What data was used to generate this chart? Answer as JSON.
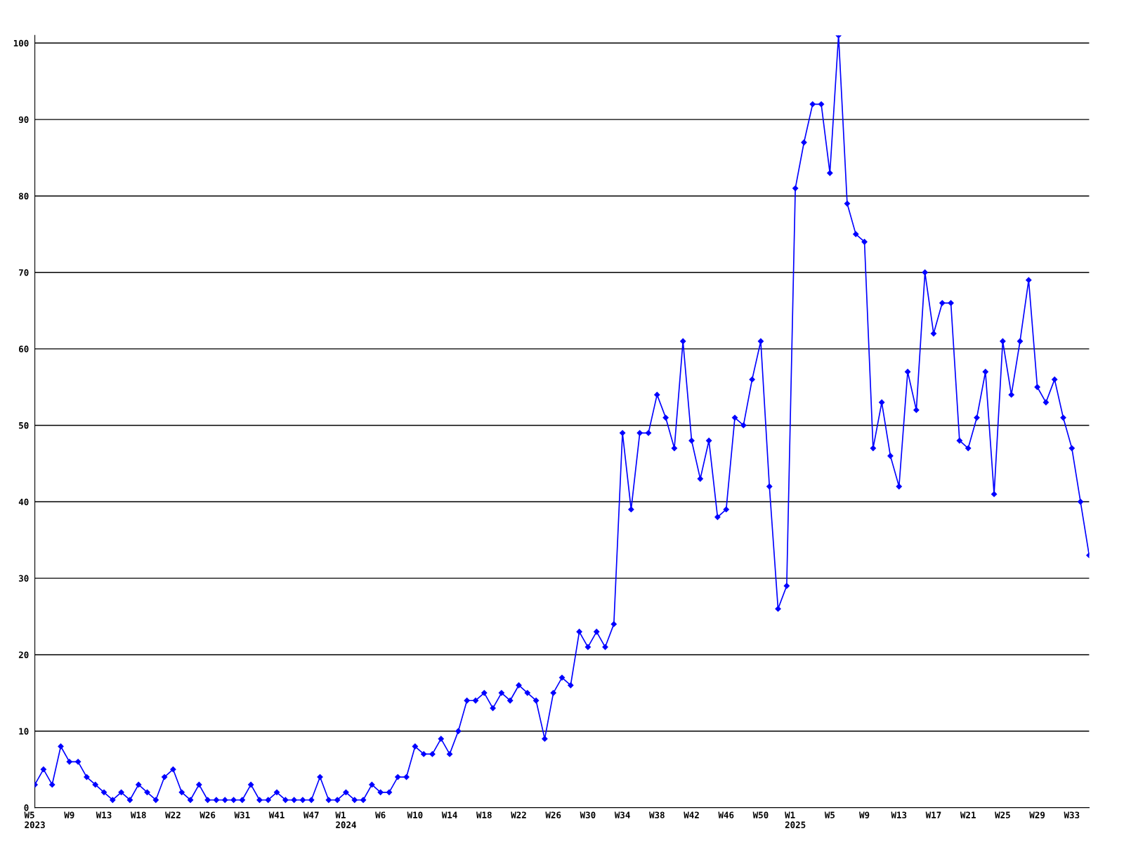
{
  "chart_data": {
    "type": "line",
    "categories": [
      "W5\n2023",
      null,
      null,
      null,
      "W9",
      null,
      null,
      null,
      "W13",
      null,
      null,
      null,
      "W18",
      null,
      null,
      null,
      "W22",
      null,
      null,
      null,
      "W26",
      null,
      null,
      null,
      "W31",
      null,
      null,
      null,
      "W41",
      null,
      null,
      null,
      "W47",
      null,
      null,
      null,
      "W1\n2024",
      null,
      null,
      null,
      "W6",
      null,
      null,
      null,
      "W10",
      null,
      null,
      null,
      "W14",
      null,
      null,
      null,
      "W18",
      null,
      null,
      null,
      "W22",
      null,
      null,
      null,
      "W26",
      null,
      null,
      null,
      "W30",
      null,
      null,
      null,
      "W34",
      null,
      null,
      null,
      "W38",
      null,
      null,
      null,
      "W42",
      null,
      null,
      null,
      "W46",
      null,
      null,
      null,
      "W50",
      null,
      null,
      null,
      "W1\n2025",
      null,
      null,
      null,
      "W5",
      null,
      null,
      null,
      "W9",
      null,
      null,
      null,
      "W13",
      null,
      null,
      null,
      "W17",
      null,
      null,
      null,
      "W21",
      null,
      null,
      null,
      "W25",
      null,
      null,
      null,
      "W29",
      null,
      null,
      null,
      "W33",
      null,
      null
    ],
    "series": [
      {
        "color": "#0000ff",
        "values": [
          3,
          5,
          3,
          8,
          6,
          6,
          4,
          3,
          2,
          1,
          2,
          1,
          3,
          2,
          1,
          4,
          5,
          2,
          1,
          3,
          1,
          1,
          1,
          1,
          1,
          3,
          1,
          1,
          2,
          1,
          1,
          1,
          1,
          4,
          1,
          1,
          2,
          1,
          1,
          3,
          2,
          2,
          4,
          4,
          8,
          7,
          7,
          9,
          7,
          10,
          14,
          14,
          15,
          13,
          15,
          14,
          16,
          15,
          14,
          9,
          15,
          17,
          16,
          23,
          21,
          23,
          21,
          24,
          49,
          39,
          49,
          49,
          54,
          51,
          47,
          61,
          48,
          43,
          48,
          38,
          39,
          51,
          50,
          56,
          61,
          42,
          26,
          29,
          81,
          87,
          92,
          92,
          83,
          101,
          79,
          75,
          74,
          47,
          53,
          46,
          42,
          57,
          52,
          70,
          62,
          66,
          66,
          48,
          47,
          51,
          57,
          41,
          61,
          54,
          61,
          69,
          55,
          53,
          56,
          51,
          47,
          40,
          33
        ]
      }
    ],
    "ylim": [
      0,
      101
    ],
    "yticks": [
      0,
      10,
      20,
      30,
      40,
      50,
      60,
      70,
      80,
      90,
      100
    ],
    "grid": "y",
    "marker": "diamond",
    "line_style": "solid"
  }
}
